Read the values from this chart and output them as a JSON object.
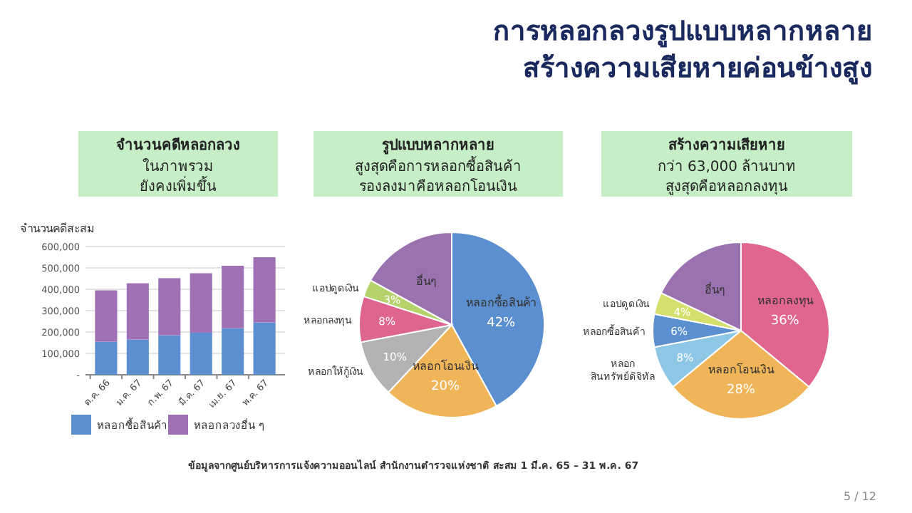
{
  "chart_data": [
    {
      "type": "bar",
      "title": "จำนวนคดีหลอกลวง",
      "subtitle": "ในภาพรวม\nยังคงเพิ่มขึ้น",
      "ylabel": "จำนวนคดีสะสม",
      "categories": [
        "ต.ค. 66",
        "ม.ค. 67",
        "ก.พ. 67",
        "มี.ค. 67",
        "เม.ย. 67",
        "พ.ค. 67"
      ],
      "stacked": true,
      "series": [
        {
          "name": "หลอกซื้อสินค้า",
          "color": "#5b8fd0",
          "values": [
            155000,
            165000,
            185000,
            197000,
            218000,
            245000
          ]
        },
        {
          "name": "หลอกลวงอื่น ๆ",
          "color": "#a070b5",
          "values": [
            240000,
            263000,
            267000,
            278000,
            292000,
            305000
          ]
        }
      ],
      "ylim": [
        0,
        600000
      ],
      "yticks": [
        {
          "value": 0,
          "label": "-"
        },
        {
          "value": 100000,
          "label": "100,000"
        },
        {
          "value": 200000,
          "label": "200,000"
        },
        {
          "value": 300000,
          "label": "300,000"
        },
        {
          "value": 400000,
          "label": "400,000"
        },
        {
          "value": 500000,
          "label": "500,000"
        },
        {
          "value": 600000,
          "label": "600,000"
        }
      ],
      "grid": "y",
      "legend": "bottom",
      "annotations": [
        "การหลอกลวงรูปแบบหลากหลาย",
        "สร้างความเสียหายค่อนข้างสูง",
        "ข้อมูลจากศูนย์บริหารการแจ้งความออนไลน์ สำนักงานตำรวจแห่งชาติ สะสม 1 มี.ค. 65 – 31 พ.ค. 67",
        "5 / 12"
      ]
    },
    {
      "type": "pie",
      "title": "รูปแบบหลากหลาย",
      "subtitle": "สูงสุดคือการหลอกซื้อสินค้า\nรองลงมาคือหลอกโอนเงิน",
      "categories": [
        "หลอกซื้อสินค้า",
        "หลอกโอนเงิน",
        "หลอกให้กู้เงิน",
        "หลอกลงทุน",
        "แอปดูดเงิน",
        "อื่นๆ"
      ],
      "values": [
        42,
        20,
        10,
        8,
        3,
        17
      ],
      "colors": [
        "#5b8fcf",
        "#f0b558",
        "#b3b3b3",
        "#de6590",
        "#b5d36b",
        "#9b72b0"
      ],
      "value_labels": [
        "42%",
        "20%",
        "10%",
        "8%",
        "3%",
        null
      ]
    },
    {
      "type": "pie",
      "title": "สร้างความเสียหาย",
      "subtitle": "กว่า 63,000 ล้านบาท\nสูงสุดคือหลอกลงทุน",
      "categories": [
        "หลอกลงทุน",
        "หลอกโอนเงิน",
        "หลอก\nสินทรัพย์ดิจิทัล",
        "หลอกซื้อสินค้า",
        "แอปดูดเงิน",
        "อื่นๆ"
      ],
      "values": [
        36,
        28,
        8,
        6,
        4,
        18
      ],
      "colors": [
        "#e0658f",
        "#f0b558",
        "#8ec7e6",
        "#5b8fcf",
        "#d4e06b",
        "#9b72b0"
      ],
      "value_labels": [
        "36%",
        "28%",
        "8%",
        "6%",
        "4%",
        null
      ]
    }
  ]
}
